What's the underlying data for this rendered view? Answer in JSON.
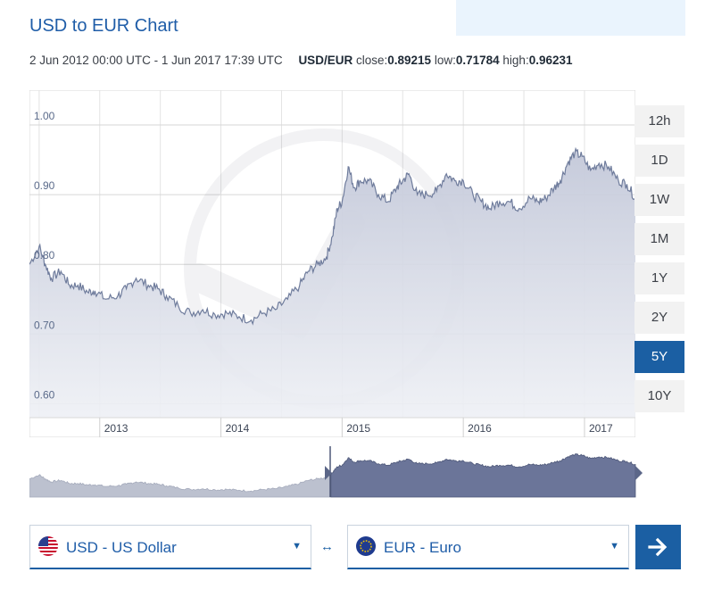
{
  "page": {
    "title": "USD to EUR Chart",
    "date_range": "2 Jun 2012 00:00 UTC - 1 Jun 2017 17:39 UTC",
    "pair": "USD/EUR",
    "close_label": "close:",
    "close_value": "0.89215",
    "low_label": "low:",
    "low_value": "0.71784",
    "high_label": "high:",
    "high_value": "0.96231"
  },
  "ranges": [
    {
      "label": "12h",
      "active": false
    },
    {
      "label": "1D",
      "active": false
    },
    {
      "label": "1W",
      "active": false
    },
    {
      "label": "1M",
      "active": false
    },
    {
      "label": "1Y",
      "active": false
    },
    {
      "label": "2Y",
      "active": false
    },
    {
      "label": "5Y",
      "active": true
    },
    {
      "label": "10Y",
      "active": false
    }
  ],
  "converter": {
    "from_label": "USD - US Dollar",
    "to_label": "EUR - Euro",
    "swap_symbol": "↔",
    "from_flag_icon": "us-flag-icon",
    "to_flag_icon": "eu-flag-icon",
    "caret_icon": "caret-down-icon",
    "go_icon": "arrow-right-icon"
  },
  "colors": {
    "accent": "#1b5fa3",
    "line": "#6f7c9c",
    "navigator_fill": "#6b7599"
  },
  "chart_data": {
    "type": "area",
    "title": "",
    "xlabel": "",
    "ylabel": "",
    "ylim": [
      0.58,
      1.05
    ],
    "yticks": [
      0.6,
      0.7,
      0.8,
      0.9,
      1.0
    ],
    "ytick_labels": [
      "0.60",
      "0.70",
      "0.80",
      "0.90",
      "1.00"
    ],
    "xtick_labels": [
      "2013",
      "2014",
      "2015",
      "2016",
      "2017"
    ],
    "xtick_pos": [
      2013.0,
      2014.0,
      2015.0,
      2016.0,
      2017.0
    ],
    "xlim": [
      2012.42,
      2017.42
    ],
    "grid": true,
    "series": [
      {
        "x": [
          2012.42,
          2012.5,
          2012.55,
          2012.6,
          2012.68,
          2012.75,
          2012.82,
          2012.9,
          2012.96,
          2013.05,
          2013.15,
          2013.22,
          2013.3,
          2013.4,
          2013.48,
          2013.55,
          2013.65,
          2013.75,
          2013.85,
          2013.95,
          2014.05,
          2014.15,
          2014.25,
          2014.35,
          2014.45,
          2014.55,
          2014.65,
          2014.72,
          2014.8,
          2014.87,
          2014.92,
          2014.96,
          2015.0,
          2015.05,
          2015.1,
          2015.15,
          2015.22,
          2015.3,
          2015.38,
          2015.45,
          2015.5,
          2015.55,
          2015.62,
          2015.7,
          2015.78,
          2015.86,
          2015.93,
          2016.0,
          2016.08,
          2016.15,
          2016.22,
          2016.3,
          2016.38,
          2016.46,
          2016.55,
          2016.62,
          2016.68,
          2016.75,
          2016.8,
          2016.86,
          2016.92,
          2016.98,
          2017.05,
          2017.12,
          2017.2,
          2017.28,
          2017.35,
          2017.42
        ],
        "y": [
          0.8,
          0.826,
          0.8,
          0.78,
          0.79,
          0.77,
          0.77,
          0.76,
          0.762,
          0.75,
          0.755,
          0.765,
          0.78,
          0.77,
          0.765,
          0.755,
          0.74,
          0.73,
          0.735,
          0.728,
          0.73,
          0.725,
          0.72,
          0.73,
          0.735,
          0.75,
          0.77,
          0.79,
          0.8,
          0.81,
          0.84,
          0.88,
          0.89,
          0.94,
          0.91,
          0.92,
          0.92,
          0.9,
          0.89,
          0.91,
          0.92,
          0.93,
          0.9,
          0.9,
          0.905,
          0.93,
          0.92,
          0.92,
          0.9,
          0.89,
          0.88,
          0.89,
          0.89,
          0.88,
          0.895,
          0.89,
          0.895,
          0.91,
          0.92,
          0.945,
          0.96,
          0.955,
          0.935,
          0.945,
          0.94,
          0.92,
          0.915,
          0.895
        ]
      }
    ]
  }
}
